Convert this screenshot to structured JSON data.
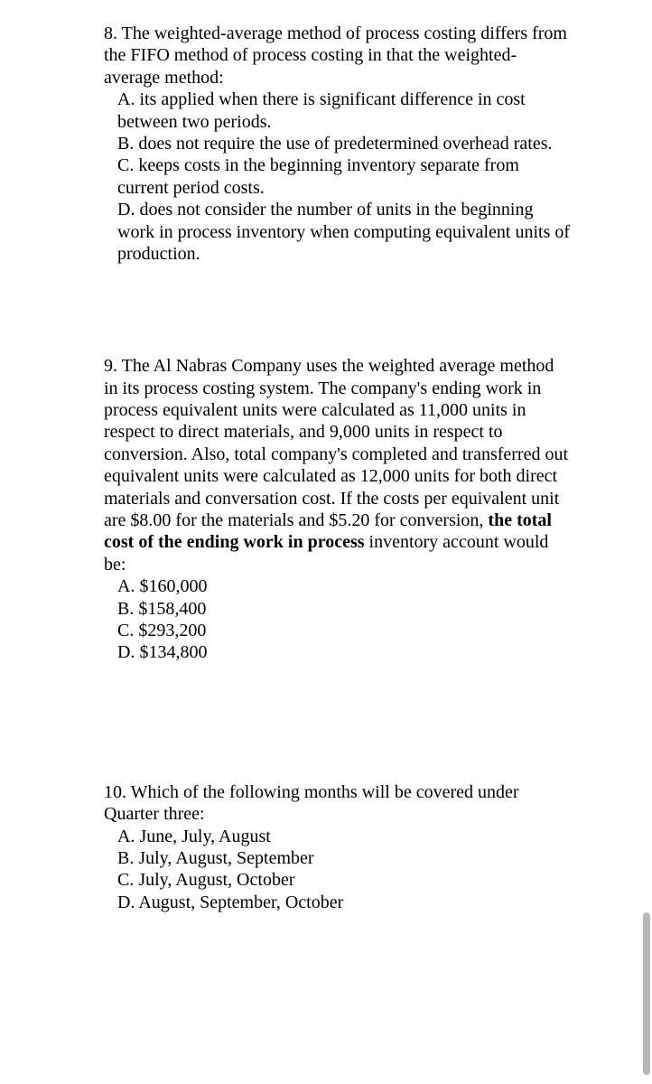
{
  "questions": {
    "q8": {
      "number": "8.",
      "stem": "The weighted-average method of process costing differs from the FIFO method of process costing in that the weighted-average method:",
      "choices": {
        "A": "A. its applied when there is significant difference in cost between two periods.",
        "B": "B. does not require the use of predetermined overhead rates.",
        "C": "C. keeps costs in the beginning inventory separate from current period costs.",
        "D": "D. does not consider the number of units in the beginning work in process inventory when computing equivalent units of production."
      }
    },
    "q9": {
      "number": "9.",
      "stem_part1": "The Al Nabras Company uses the weighted average method in its process costing system. The company's ending work in process equivalent units were calculated as 11,000 units in respect to direct materials, and 9,000 units in respect to conversion.  Also, total company's completed and transferred out equivalent units were calculated as 12,000 units for both direct materials and conversation cost. If the costs per equivalent unit are $8.00 for the materials and $5.20 for conversion, ",
      "stem_bold": "the total cost of the ending work in process ",
      "stem_part2": "inventory account would be:",
      "choices": {
        "A": "A. $160,000",
        "B": "B. $158,400",
        "C": "C. $293,200",
        "D": "D. $134,800"
      }
    },
    "q10": {
      "number": "10.",
      "stem": "Which of the following months will be covered under Quarter three:",
      "choices": {
        "A": "A. June, July, August",
        "B": "B. July, August, September",
        "C": "C. July, August, October",
        "D": "D. August, September, October"
      }
    }
  }
}
